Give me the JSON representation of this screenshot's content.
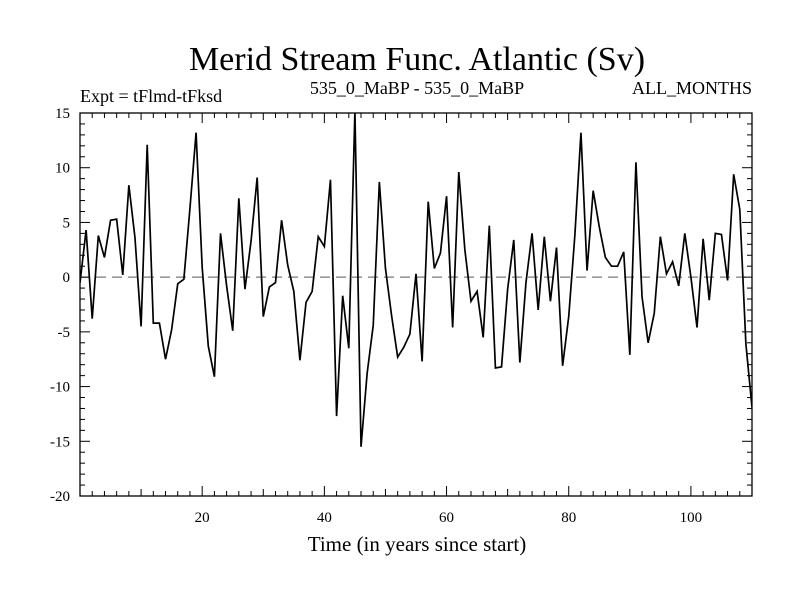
{
  "chart_data": {
    "type": "line",
    "title": "Merid Stream Func. Atlantic (Sv)",
    "subtitle_left": "Expt = tFlmd-tFksd",
    "subtitle_center": "535_0_MaBP - 535_0_MaBP",
    "subtitle_right": "ALL_MONTHS",
    "xlabel": "Time (in years since start)",
    "ylabel": "",
    "xlim": [
      0,
      110
    ],
    "ylim": [
      -20,
      15
    ],
    "x_ticks": [
      20,
      40,
      60,
      80,
      100
    ],
    "x_tick_labels": [
      "20",
      "40",
      "60",
      "80",
      "100"
    ],
    "y_ticks": [
      -20,
      -15,
      -10,
      -5,
      0,
      5,
      10,
      15
    ],
    "y_tick_labels": [
      "-20",
      "-15",
      "-10",
      "-5",
      "0",
      "5",
      "10",
      "15"
    ],
    "zero_line": "dashed",
    "series": [
      {
        "name": "Merid Stream Func.",
        "color": "#000000",
        "x": [
          0,
          1,
          2,
          3,
          4,
          5,
          6,
          7,
          8,
          9,
          10,
          11,
          12,
          13,
          14,
          15,
          16,
          17,
          18,
          19,
          20,
          21,
          22,
          23,
          24,
          25,
          26,
          27,
          28,
          29,
          30,
          31,
          32,
          33,
          34,
          35,
          36,
          37,
          38,
          39,
          40,
          41,
          42,
          43,
          44,
          45,
          46,
          47,
          48,
          49,
          50,
          51,
          52,
          53,
          54,
          55,
          56,
          57,
          58,
          59,
          60,
          61,
          62,
          63,
          64,
          65,
          66,
          67,
          68,
          69,
          70,
          71,
          72,
          73,
          74,
          75,
          76,
          77,
          78,
          79,
          80,
          81,
          82,
          83,
          84,
          85,
          86,
          87,
          88,
          89,
          90,
          91,
          92,
          93,
          94,
          95,
          96,
          97,
          98,
          99,
          100,
          101,
          102,
          103,
          104,
          105,
          106,
          107,
          108,
          109,
          110
        ],
        "values": [
          -0.5,
          4.3,
          -3.8,
          3.8,
          1.8,
          5.2,
          5.3,
          0.2,
          8.4,
          3.6,
          -4.5,
          12.1,
          -4.2,
          -4.2,
          -7.5,
          -4.8,
          -0.6,
          -0.2,
          6.3,
          13.2,
          0.9,
          -6.3,
          -9.1,
          4.0,
          -0.8,
          -4.9,
          7.2,
          -1.1,
          3.3,
          9.1,
          -3.6,
          -0.9,
          -0.5,
          5.2,
          1.1,
          -1.3,
          -7.6,
          -2.3,
          -1.3,
          3.7,
          2.8,
          8.9,
          -12.7,
          -1.7,
          -6.5,
          15.2,
          -15.5,
          -8.8,
          -4.4,
          8.7,
          0.8,
          -3.5,
          -7.3,
          -6.4,
          -5.2,
          0.3,
          -7.7,
          6.9,
          0.8,
          2.2,
          7.4,
          -4.6,
          9.6,
          2.5,
          -2.2,
          -1.3,
          -5.5,
          4.7,
          -8.3,
          -8.2,
          -1.1,
          3.4,
          -7.8,
          -0.5,
          4.0,
          -3.0,
          3.7,
          -2.2,
          2.7,
          -8.1,
          -3.6,
          3.8,
          13.2,
          0.6,
          7.9,
          4.6,
          1.8,
          1.0,
          1.0,
          2.3,
          -7.1,
          10.5,
          -1.8,
          -6.0,
          -3.3,
          3.7,
          0.3,
          1.4,
          -0.8,
          4.0,
          0.0,
          -4.6,
          3.5,
          -2.1,
          4.0,
          3.9,
          -0.3,
          9.4,
          6.2,
          -6.1,
          -11.9
        ]
      }
    ]
  }
}
